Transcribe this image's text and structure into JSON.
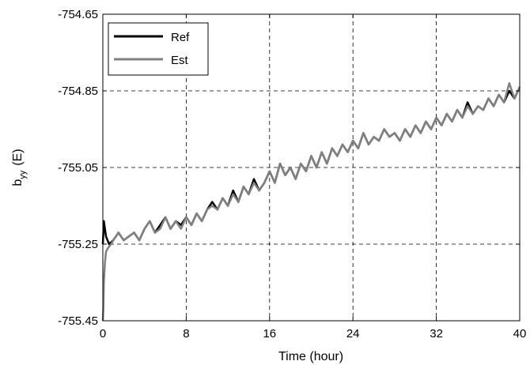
{
  "chart_data": {
    "type": "line",
    "xlabel": "Time (hour)",
    "ylabel_main": "b",
    "ylabel_sub": "yy",
    "ylabel_unit": "(E)",
    "xlim": [
      0,
      40
    ],
    "ylim": [
      -755.45,
      -754.65
    ],
    "xticks": [
      0,
      8,
      16,
      24,
      32,
      40
    ],
    "xtick_labels": [
      "0",
      "8",
      "16",
      "24",
      "32",
      "40"
    ],
    "yticks": [
      -755.45,
      -755.25,
      -755.05,
      -754.85,
      -754.65
    ],
    "ytick_labels": [
      "-755.45",
      "-755.25",
      "-755.05",
      "-754.85",
      "-754.65"
    ],
    "grid": true,
    "legend_position": "top-left",
    "series": [
      {
        "name": "Ref",
        "color": "#000000",
        "x": [
          0,
          0.1,
          0.3,
          0.6,
          1.0,
          1.5,
          2.0,
          2.5,
          3.0,
          3.5,
          4.0,
          4.5,
          5.0,
          5.5,
          6.0,
          6.5,
          7.0,
          7.5,
          8.0,
          8.5,
          9.0,
          9.5,
          10.0,
          10.5,
          11.0,
          11.5,
          12.0,
          12.5,
          13.0,
          13.5,
          14.0,
          14.5,
          15.0,
          15.5,
          16.0,
          16.5,
          17.0,
          17.5,
          18.0,
          18.5,
          19.0,
          19.5,
          20.0,
          20.5,
          21.0,
          21.5,
          22.0,
          22.5,
          23.0,
          23.5,
          24.0,
          24.5,
          25.0,
          25.5,
          26.0,
          26.5,
          27.0,
          27.5,
          28.0,
          28.5,
          29.0,
          29.5,
          30.0,
          30.5,
          31.0,
          31.5,
          32.0,
          32.5,
          33.0,
          33.5,
          34.0,
          34.5,
          35.0,
          35.5,
          36.0,
          36.5,
          37.0,
          37.5,
          38.0,
          38.5,
          39.0,
          39.5,
          40.0
        ],
        "y": [
          -755.25,
          -755.19,
          -755.23,
          -755.25,
          -755.24,
          -755.22,
          -755.24,
          -755.23,
          -755.22,
          -755.24,
          -755.21,
          -755.19,
          -755.22,
          -755.2,
          -755.18,
          -755.21,
          -755.19,
          -755.2,
          -755.18,
          -755.2,
          -755.17,
          -755.19,
          -755.16,
          -755.14,
          -755.16,
          -755.13,
          -755.15,
          -755.11,
          -755.14,
          -755.1,
          -755.12,
          -755.08,
          -755.11,
          -755.09,
          -755.06,
          -755.09,
          -755.04,
          -755.07,
          -755.05,
          -755.08,
          -755.04,
          -755.06,
          -755.02,
          -755.05,
          -755.01,
          -755.04,
          -755.0,
          -755.02,
          -754.99,
          -755.01,
          -754.98,
          -755.0,
          -754.96,
          -754.99,
          -754.97,
          -754.98,
          -754.95,
          -754.97,
          -754.96,
          -754.98,
          -754.95,
          -754.97,
          -754.94,
          -754.96,
          -754.93,
          -754.95,
          -754.92,
          -754.94,
          -754.91,
          -754.93,
          -754.9,
          -754.92,
          -754.88,
          -754.91,
          -754.89,
          -754.9,
          -754.87,
          -754.89,
          -754.86,
          -754.88,
          -754.85,
          -754.87,
          -754.84
        ]
      },
      {
        "name": "Est",
        "color": "#808080",
        "x": [
          0,
          0.05,
          0.1,
          0.2,
          0.3,
          0.5,
          0.8,
          1.0,
          1.5,
          2.0,
          2.5,
          3.0,
          3.5,
          4.0,
          4.5,
          5.0,
          5.5,
          6.0,
          6.5,
          7.0,
          7.5,
          8.0,
          8.5,
          9.0,
          9.5,
          10.0,
          10.5,
          11.0,
          11.5,
          12.0,
          12.5,
          13.0,
          13.5,
          14.0,
          14.5,
          15.0,
          15.5,
          16.0,
          16.5,
          17.0,
          17.5,
          18.0,
          18.5,
          19.0,
          19.5,
          20.0,
          20.5,
          21.0,
          21.5,
          22.0,
          22.5,
          23.0,
          23.5,
          24.0,
          24.5,
          25.0,
          25.5,
          26.0,
          26.5,
          27.0,
          27.5,
          28.0,
          28.5,
          29.0,
          29.5,
          30.0,
          30.5,
          31.0,
          31.5,
          32.0,
          32.5,
          33.0,
          33.5,
          34.0,
          34.5,
          35.0,
          35.5,
          36.0,
          36.5,
          37.0,
          37.5,
          38.0,
          38.5,
          39.0,
          39.5,
          40.0
        ],
        "y": [
          -755.45,
          -755.42,
          -755.35,
          -755.3,
          -755.27,
          -755.26,
          -755.25,
          -755.24,
          -755.22,
          -755.24,
          -755.23,
          -755.22,
          -755.24,
          -755.21,
          -755.19,
          -755.22,
          -755.21,
          -755.18,
          -755.21,
          -755.19,
          -755.21,
          -755.18,
          -755.2,
          -755.17,
          -755.19,
          -755.16,
          -755.15,
          -755.16,
          -755.13,
          -755.15,
          -755.12,
          -755.14,
          -755.1,
          -755.12,
          -755.09,
          -755.11,
          -755.09,
          -755.06,
          -755.09,
          -755.04,
          -755.07,
          -755.05,
          -755.08,
          -755.04,
          -755.06,
          -755.02,
          -755.05,
          -755.01,
          -755.04,
          -755.0,
          -755.02,
          -754.99,
          -755.01,
          -754.98,
          -755.0,
          -754.96,
          -754.99,
          -754.97,
          -754.98,
          -754.95,
          -754.97,
          -754.96,
          -754.98,
          -754.95,
          -754.97,
          -754.94,
          -754.96,
          -754.93,
          -754.95,
          -754.92,
          -754.94,
          -754.91,
          -754.93,
          -754.9,
          -754.92,
          -754.89,
          -754.91,
          -754.89,
          -754.9,
          -754.87,
          -754.89,
          -754.86,
          -754.88,
          -754.83,
          -754.87,
          -754.84
        ]
      }
    ]
  }
}
